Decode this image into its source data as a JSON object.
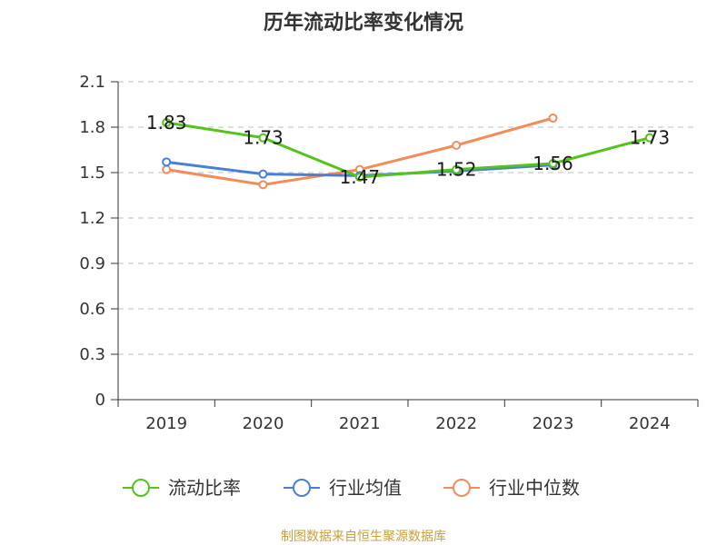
{
  "chart_data": {
    "type": "line",
    "title": "历年流动比率变化情况",
    "categories": [
      "2019",
      "2020",
      "2021",
      "2022",
      "2023",
      "2024"
    ],
    "ylim": [
      0,
      2.1
    ],
    "yticks": [
      "0",
      "0.3",
      "0.6",
      "0.9",
      "1.2",
      "1.5",
      "1.8",
      "2.1"
    ],
    "grid": true,
    "legend_position": "bottom",
    "series": [
      {
        "name": "流动比率",
        "color": "#52c41a",
        "values": [
          1.83,
          1.73,
          1.47,
          1.52,
          1.56,
          1.73
        ],
        "labels": [
          "1.83",
          "1.73",
          "1.47",
          "1.52",
          "1.56",
          "1.73"
        ]
      },
      {
        "name": "行业均值",
        "color": "#4a7fd8",
        "values": [
          1.57,
          1.49,
          1.48,
          1.51,
          1.55,
          null
        ]
      },
      {
        "name": "行业中位数",
        "color": "#f28c5a",
        "values": [
          1.52,
          1.42,
          1.52,
          1.68,
          1.86,
          null
        ]
      }
    ],
    "source": "制图数据来自恒生聚源数据库"
  }
}
